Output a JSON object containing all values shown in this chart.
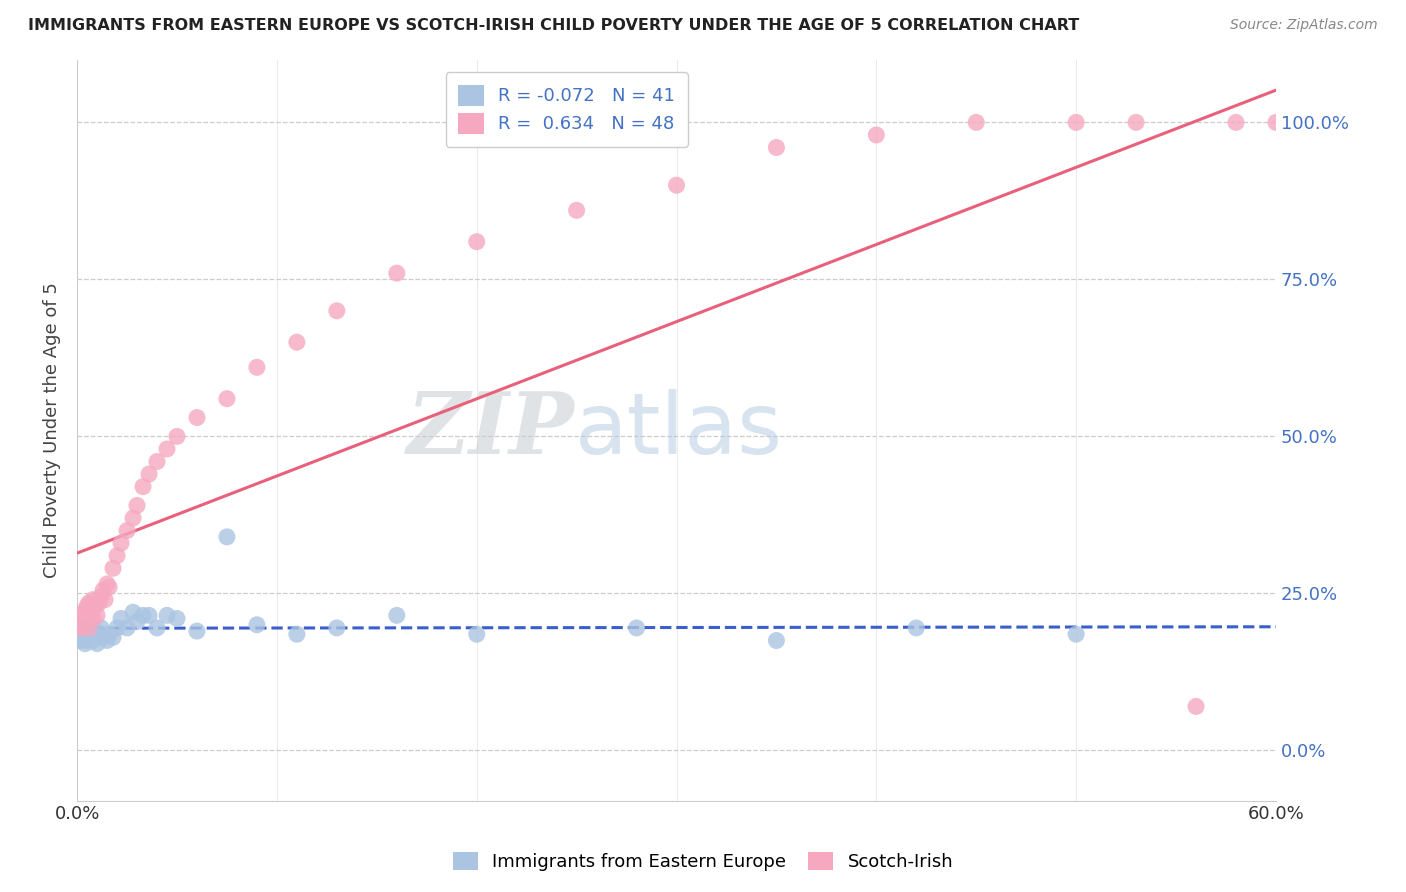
{
  "title": "IMMIGRANTS FROM EASTERN EUROPE VS SCOTCH-IRISH CHILD POVERTY UNDER THE AGE OF 5 CORRELATION CHART",
  "source": "Source: ZipAtlas.com",
  "ylabel": "Child Poverty Under the Age of 5",
  "blue_R": -0.072,
  "blue_N": 41,
  "pink_R": 0.634,
  "pink_N": 48,
  "blue_color": "#aac4e2",
  "pink_color": "#f5a8c0",
  "blue_line_color": "#3a5fcd",
  "pink_line_color": "#e8607a",
  "blue_label": "Immigrants from Eastern Europe",
  "pink_label": "Scotch-Irish",
  "xmin": 0.0,
  "xmax": 0.6,
  "ymin": -0.08,
  "ymax": 1.1,
  "yticks": [
    0.0,
    0.25,
    0.5,
    0.75,
    1.0
  ],
  "ytick_labels_right": [
    "0.0%",
    "25.0%",
    "50.0%",
    "75.0%",
    "100.0%"
  ],
  "xticks": [
    0.0,
    0.1,
    0.2,
    0.3,
    0.4,
    0.5,
    0.6
  ],
  "xtick_labels": [
    "0.0%",
    "",
    "",
    "",
    "",
    "",
    "60.0%"
  ],
  "watermark_zip": "ZIP",
  "watermark_atlas": "atlas",
  "blue_x": [
    0.001,
    0.002,
    0.002,
    0.003,
    0.003,
    0.004,
    0.004,
    0.005,
    0.005,
    0.006,
    0.007,
    0.008,
    0.009,
    0.01,
    0.011,
    0.012,
    0.013,
    0.015,
    0.016,
    0.018,
    0.02,
    0.022,
    0.025,
    0.028,
    0.03,
    0.033,
    0.036,
    0.04,
    0.045,
    0.05,
    0.06,
    0.075,
    0.09,
    0.11,
    0.13,
    0.16,
    0.2,
    0.28,
    0.35,
    0.42,
    0.5
  ],
  "blue_y": [
    0.195,
    0.185,
    0.175,
    0.19,
    0.18,
    0.17,
    0.185,
    0.175,
    0.195,
    0.18,
    0.185,
    0.175,
    0.19,
    0.17,
    0.185,
    0.195,
    0.18,
    0.175,
    0.185,
    0.18,
    0.195,
    0.21,
    0.195,
    0.22,
    0.205,
    0.215,
    0.215,
    0.195,
    0.215,
    0.21,
    0.19,
    0.34,
    0.2,
    0.185,
    0.195,
    0.215,
    0.185,
    0.195,
    0.175,
    0.195,
    0.185
  ],
  "pink_x": [
    0.001,
    0.002,
    0.003,
    0.003,
    0.004,
    0.005,
    0.005,
    0.006,
    0.006,
    0.007,
    0.008,
    0.008,
    0.009,
    0.01,
    0.011,
    0.012,
    0.013,
    0.014,
    0.015,
    0.016,
    0.018,
    0.02,
    0.022,
    0.025,
    0.028,
    0.03,
    0.033,
    0.036,
    0.04,
    0.045,
    0.05,
    0.06,
    0.075,
    0.09,
    0.11,
    0.13,
    0.16,
    0.2,
    0.25,
    0.3,
    0.35,
    0.4,
    0.45,
    0.5,
    0.53,
    0.56,
    0.58,
    0.6
  ],
  "pink_y": [
    0.2,
    0.195,
    0.215,
    0.22,
    0.205,
    0.225,
    0.23,
    0.195,
    0.235,
    0.22,
    0.24,
    0.21,
    0.23,
    0.215,
    0.235,
    0.245,
    0.255,
    0.24,
    0.265,
    0.26,
    0.29,
    0.31,
    0.33,
    0.35,
    0.37,
    0.39,
    0.42,
    0.44,
    0.46,
    0.48,
    0.5,
    0.53,
    0.56,
    0.61,
    0.65,
    0.7,
    0.76,
    0.81,
    0.86,
    0.9,
    0.96,
    0.98,
    1.0,
    1.0,
    1.0,
    0.07,
    1.0,
    1.0
  ]
}
